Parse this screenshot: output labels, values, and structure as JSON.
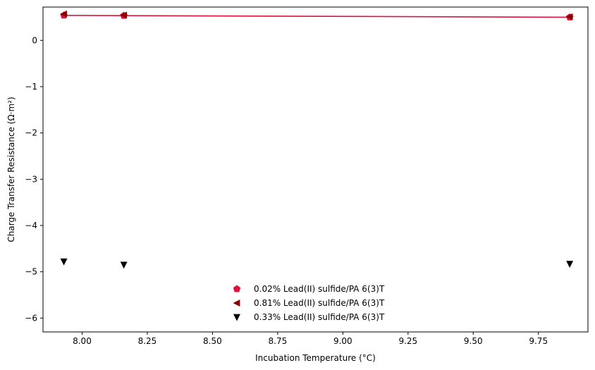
{
  "chart_data": {
    "type": "scatter",
    "title": "",
    "xlabel": "Incubation Temperature (°C)",
    "ylabel": "Charge Transfer Resistance (Ω·m²)",
    "xlim": [
      7.85,
      9.94
    ],
    "ylim": [
      -6.3,
      0.72
    ],
    "xticks": [
      8.0,
      8.25,
      8.5,
      8.75,
      9.0,
      9.25,
      9.5,
      9.75
    ],
    "xtick_labels": [
      "8.00",
      "8.25",
      "8.50",
      "8.75",
      "9.00",
      "9.25",
      "9.50",
      "9.75"
    ],
    "yticks": [
      0,
      -1,
      -2,
      -3,
      -4,
      -5,
      -6
    ],
    "ytick_labels": [
      "0",
      "−1",
      "−2",
      "−3",
      "−4",
      "−5",
      "−6"
    ],
    "grid": false,
    "legend_position": "lower-center",
    "fit_line": {
      "color": "#dc143c",
      "x": [
        7.93,
        8.16,
        9.87
      ],
      "y": [
        0.54,
        0.535,
        0.5
      ]
    },
    "series": [
      {
        "name": "0.02% Lead(II) sulfide/PA 6(3)T",
        "marker": "pentagon",
        "color": "#dc143c",
        "x": [
          7.93,
          8.16,
          9.87
        ],
        "y": [
          0.54,
          0.535,
          0.5
        ]
      },
      {
        "name": "0.81% Lead(II) sulfide/PA 6(3)T",
        "marker": "triangle-left",
        "color": "#8b0000",
        "x": [
          7.93,
          8.16,
          9.87
        ],
        "y": [
          0.57,
          0.545,
          0.51
        ]
      },
      {
        "name": "0.33% Lead(II) sulfide/PA 6(3)T",
        "marker": "triangle-down",
        "color": "#000000",
        "x": [
          7.93,
          8.16,
          9.87
        ],
        "y": [
          -4.78,
          -4.85,
          -4.83
        ]
      }
    ]
  }
}
